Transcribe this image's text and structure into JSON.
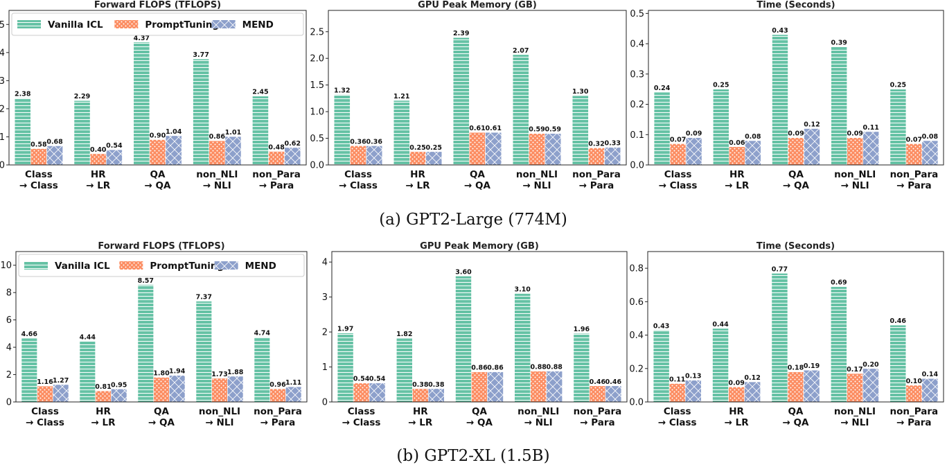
{
  "colors": {
    "vanilla": "#66c2a5",
    "prompt": "#fc8d62",
    "mend": "#8da0cb",
    "axis": "#222222"
  },
  "chart_data": [
    {
      "type": "bar",
      "title": "Forward FLOPS (TFLOPS)",
      "categories": [
        "Class\n→ Class",
        "HR\n→ LR",
        "QA\n→ QA",
        "non_NLI\n→ NLI",
        "non_Para\n→ Para"
      ],
      "series": [
        {
          "name": "Vanilla ICL",
          "values": [
            2.38,
            2.29,
            4.37,
            3.77,
            2.45
          ],
          "labels": [
            "2.38",
            "2.29",
            "4.37",
            "3.77",
            "2.45"
          ]
        },
        {
          "name": "PromptTuning",
          "values": [
            0.58,
            0.4,
            0.9,
            0.86,
            0.48
          ],
          "labels": [
            "0.58",
            "0.40",
            "0.90",
            "0.86",
            "0.48"
          ]
        },
        {
          "name": "MEND",
          "values": [
            0.68,
            0.54,
            1.04,
            1.01,
            0.62
          ],
          "labels": [
            "0.68",
            "0.54",
            "1.04",
            "1.01",
            "0.62"
          ]
        }
      ],
      "ylim": [
        0,
        5.5
      ],
      "yticks": [
        0,
        1,
        2,
        3,
        4,
        5
      ],
      "ytick_labels": [
        "0",
        "1",
        "2",
        "3",
        "4",
        "5"
      ],
      "legend": "top"
    },
    {
      "type": "bar",
      "title": "GPU Peak Memory (GB)",
      "categories": [
        "Class\n→ Class",
        "HR\n→ LR",
        "QA\n→ QA",
        "non_NLI\n→ NLI",
        "non_Para\n→ Para"
      ],
      "series": [
        {
          "name": "Vanilla ICL",
          "values": [
            1.32,
            1.21,
            2.39,
            2.07,
            1.3
          ],
          "labels": [
            "1.32",
            "1.21",
            "2.39",
            "2.07",
            "1.30"
          ]
        },
        {
          "name": "PromptTuning",
          "values": [
            0.36,
            0.25,
            0.61,
            0.59,
            0.32
          ],
          "labels": [
            "0.36",
            "0.25",
            "0.61",
            "0.59",
            "0.32"
          ]
        },
        {
          "name": "MEND",
          "values": [
            0.36,
            0.25,
            0.61,
            0.59,
            0.33
          ],
          "labels": [
            "0.36",
            "0.25",
            "0.61",
            "0.59",
            "0.33"
          ]
        }
      ],
      "ylim": [
        0,
        2.9
      ],
      "yticks": [
        0,
        0.5,
        1.0,
        1.5,
        2.0,
        2.5
      ],
      "ytick_labels": [
        "0.0",
        "0.5",
        "1.0",
        "1.5",
        "2.0",
        "2.5"
      ]
    },
    {
      "type": "bar",
      "title": "Time (Seconds)",
      "categories": [
        "Class\n→ Class",
        "HR\n→ LR",
        "QA\n→ QA",
        "non_NLI\n→ NLI",
        "non_Para\n→ Para"
      ],
      "series": [
        {
          "name": "Vanilla ICL",
          "values": [
            0.24,
            0.25,
            0.43,
            0.39,
            0.25
          ],
          "labels": [
            "0.24",
            "0.25",
            "0.43",
            "0.39",
            "0.25"
          ]
        },
        {
          "name": "PromptTuning",
          "values": [
            0.07,
            0.06,
            0.09,
            0.09,
            0.07
          ],
          "labels": [
            "0.07",
            "0.06",
            "0.09",
            "0.09",
            "0.07"
          ]
        },
        {
          "name": "MEND",
          "values": [
            0.09,
            0.08,
            0.12,
            0.11,
            0.08
          ],
          "labels": [
            "0.09",
            "0.08",
            "0.12",
            "0.11",
            "0.08"
          ]
        }
      ],
      "ylim": [
        0,
        0.51
      ],
      "yticks": [
        0,
        0.1,
        0.2,
        0.3,
        0.4,
        0.5
      ],
      "ytick_labels": [
        "0.0",
        "0.1",
        "0.2",
        "0.3",
        "0.4",
        "0.5"
      ]
    },
    {
      "type": "bar",
      "title": "Forward FLOPS (TFLOPS)",
      "categories": [
        "Class\n→ Class",
        "HR\n→ LR",
        "QA\n→ QA",
        "non_NLI\n→ NLI",
        "non_Para\n→ Para"
      ],
      "series": [
        {
          "name": "Vanilla ICL",
          "values": [
            4.66,
            4.44,
            8.57,
            7.37,
            4.74
          ],
          "labels": [
            "4.66",
            "4.44",
            "8.57",
            "7.37",
            "4.74"
          ]
        },
        {
          "name": "PromptTuning",
          "values": [
            1.16,
            0.81,
            1.8,
            1.73,
            0.96
          ],
          "labels": [
            "1.16",
            "0.81",
            "1.80",
            "1.73",
            "0.96"
          ]
        },
        {
          "name": "MEND",
          "values": [
            1.27,
            0.95,
            1.94,
            1.88,
            1.11
          ],
          "labels": [
            "1.27",
            "0.95",
            "1.94",
            "1.88",
            "1.11"
          ]
        }
      ],
      "ylim": [
        0,
        11
      ],
      "yticks": [
        0,
        2,
        4,
        6,
        8,
        10
      ],
      "ytick_labels": [
        "0",
        "2",
        "4",
        "6",
        "8",
        "10"
      ],
      "legend": "top"
    },
    {
      "type": "bar",
      "title": "GPU Peak Memory (GB)",
      "categories": [
        "Class\n→ Class",
        "HR\n→ LR",
        "QA\n→ QA",
        "non_NLI\n→ NLI",
        "non_Para\n→ Para"
      ],
      "series": [
        {
          "name": "Vanilla ICL",
          "values": [
            1.97,
            1.82,
            3.6,
            3.1,
            1.96
          ],
          "labels": [
            "1.97",
            "1.82",
            "3.60",
            "3.10",
            "1.96"
          ]
        },
        {
          "name": "PromptTuning",
          "values": [
            0.54,
            0.38,
            0.86,
            0.88,
            0.46
          ],
          "labels": [
            "0.54",
            "0.38",
            "0.86",
            "0.88",
            "0.46"
          ]
        },
        {
          "name": "MEND",
          "values": [
            0.54,
            0.38,
            0.86,
            0.88,
            0.46
          ],
          "labels": [
            "0.54",
            "0.38",
            "0.86",
            "0.88",
            "0.46"
          ]
        }
      ],
      "ylim": [
        0,
        4.3
      ],
      "yticks": [
        0,
        1,
        2,
        3,
        4
      ],
      "ytick_labels": [
        "0",
        "1",
        "2",
        "3",
        "4"
      ]
    },
    {
      "type": "bar",
      "title": "Time (Seconds)",
      "categories": [
        "Class\n→ Class",
        "HR\n→ LR",
        "QA\n→ QA",
        "non_NLI\n→ NLI",
        "non_Para\n→ Para"
      ],
      "series": [
        {
          "name": "Vanilla ICL",
          "values": [
            0.43,
            0.44,
            0.77,
            0.69,
            0.46
          ],
          "labels": [
            "0.43",
            "0.44",
            "0.77",
            "0.69",
            "0.46"
          ]
        },
        {
          "name": "PromptTuning",
          "values": [
            0.11,
            0.09,
            0.18,
            0.17,
            0.1
          ],
          "labels": [
            "0.11",
            "0.09",
            "0.18",
            "0.17",
            "0.10"
          ]
        },
        {
          "name": "MEND",
          "values": [
            0.13,
            0.12,
            0.19,
            0.2,
            0.14
          ],
          "labels": [
            "0.13",
            "0.12",
            "0.19",
            "0.20",
            "0.14"
          ]
        }
      ],
      "ylim": [
        0,
        0.9
      ],
      "yticks": [
        0,
        0.2,
        0.4,
        0.6,
        0.8
      ],
      "ytick_labels": [
        "0.0",
        "0.2",
        "0.4",
        "0.6",
        "0.8"
      ]
    }
  ],
  "captions": {
    "top": "(a) GPT2-Large (774M)",
    "bottom": "(b) GPT2-XL (1.5B)"
  }
}
